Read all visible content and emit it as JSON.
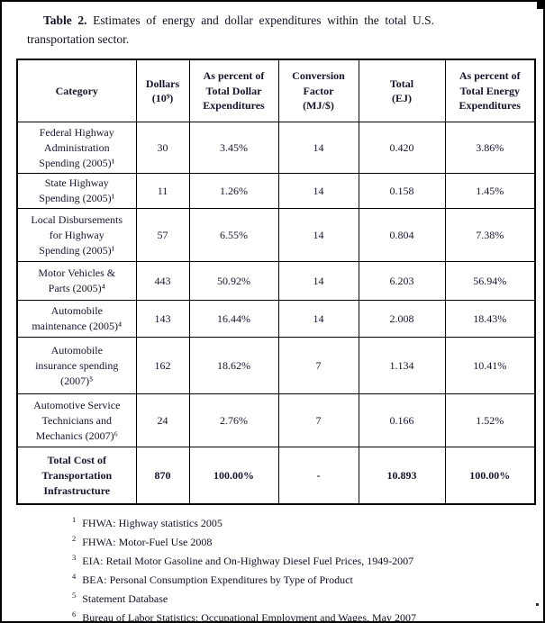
{
  "caption": {
    "label": "Table 2.",
    "text": " Estimates of energy and dollar expenditures within the total U.S. transportation sector."
  },
  "table": {
    "headers": [
      "Category",
      "Dollars\n(10⁹)",
      "As percent of\nTotal Dollar\nExpenditures",
      "Conversion\nFactor\n(MJ/$)",
      "Total\n(EJ)",
      "As percent of\nTotal Energy\nExpenditures"
    ],
    "rows": [
      {
        "cells": [
          "Federal Highway\nAdministration\nSpending (2005)¹",
          "30",
          "3.45%",
          "14",
          "0.420",
          "3.86%"
        ]
      },
      {
        "cells": [
          "State Highway\nSpending (2005)¹",
          "11",
          "1.26%",
          "14",
          "0.158",
          "1.45%"
        ]
      },
      {
        "cells": [
          "Local Disbursements\nfor Highway\nSpending (2005)¹",
          "57",
          "6.55%",
          "14",
          "0.804",
          "7.38%"
        ]
      },
      {
        "cells": [
          "Motor Vehicles &\nParts (2005)⁴",
          "443",
          "50.92%",
          "14",
          "6.203",
          "56.94%"
        ]
      },
      {
        "cells": [
          "Automobile\nmaintenance (2005)⁴",
          "143",
          "16.44%",
          "14",
          "2.008",
          "18.43%"
        ]
      },
      {
        "cells": [
          "Automobile\ninsurance spending\n(2007)⁵",
          "162",
          "18.62%",
          "7",
          "1.134",
          "10.41%"
        ]
      },
      {
        "cells": [
          "Automotive Service\nTechnicians and\nMechanics (2007)⁶",
          "24",
          "2.76%",
          "7",
          "0.166",
          "1.52%"
        ]
      },
      {
        "cells": [
          "Total Cost of\nTransportation\nInfrastructure",
          "870",
          "100.00%",
          "-",
          "10.893",
          "100.00%"
        ]
      }
    ]
  },
  "footnotes": [
    {
      "marker": "1",
      "text": "FHWA: Highway statistics 2005"
    },
    {
      "marker": "2",
      "text": "FHWA: Motor-Fuel Use 2008"
    },
    {
      "marker": "3",
      "text": "EIA: Retail Motor Gasoline and On-Highway Diesel Fuel Prices, 1949-2007"
    },
    {
      "marker": "4",
      "text": "BEA: Personal Consumption Expenditures by Type of Product"
    },
    {
      "marker": "5",
      "text": "Statement Database"
    },
    {
      "marker": "6",
      "text": "Bureau of Labor Statistics: Occupational Employment and Wages, May 2007"
    }
  ],
  "colors": {
    "text": "#15152e",
    "border": "#000000",
    "background": "#ffffff"
  }
}
